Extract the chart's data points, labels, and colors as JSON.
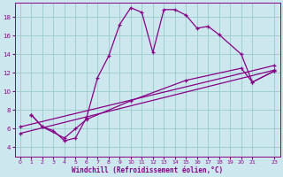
{
  "xlabel": "Windchill (Refroidissement éolien,°C)",
  "bg_color": "#cce8ee",
  "line_color": "#880088",
  "grid_color": "#99cccc",
  "xlim": [
    -0.5,
    23.5
  ],
  "ylim": [
    3.0,
    19.5
  ],
  "xticks": [
    0,
    1,
    2,
    3,
    4,
    5,
    6,
    7,
    8,
    9,
    10,
    11,
    12,
    13,
    14,
    15,
    16,
    17,
    18,
    19,
    20,
    21,
    23
  ],
  "yticks": [
    4,
    6,
    8,
    10,
    12,
    14,
    16,
    18
  ],
  "line1_x": [
    1,
    2,
    3,
    4,
    5,
    6,
    7,
    8,
    9,
    10,
    11,
    12,
    13,
    14,
    15,
    16,
    17,
    18,
    20,
    21,
    23
  ],
  "line1_y": [
    7.5,
    6.2,
    5.8,
    4.7,
    5.0,
    7.2,
    11.5,
    13.8,
    17.2,
    19.0,
    18.5,
    14.2,
    18.8,
    18.8,
    18.2,
    16.8,
    17.0,
    16.1,
    14.0,
    11.0,
    12.2
  ],
  "line2_x": [
    1,
    2,
    4,
    5,
    6,
    10,
    15,
    20,
    21,
    23
  ],
  "line2_y": [
    7.5,
    6.2,
    5.0,
    6.0,
    7.0,
    9.0,
    11.2,
    12.5,
    11.0,
    12.2
  ],
  "line3_x": [
    0,
    23
  ],
  "line3_y": [
    5.5,
    12.3
  ],
  "line4_x": [
    0,
    23
  ],
  "line4_y": [
    6.2,
    12.8
  ]
}
